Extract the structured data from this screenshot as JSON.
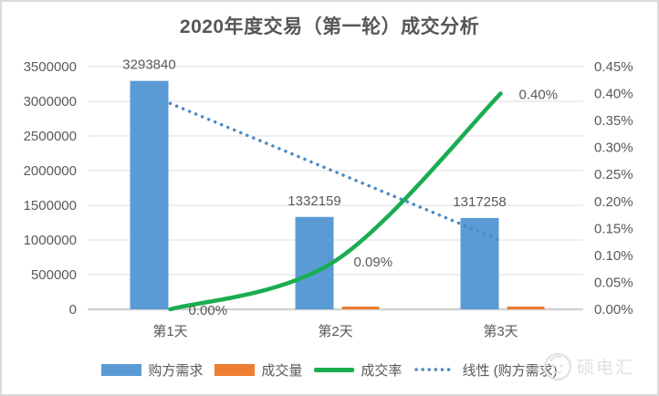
{
  "chart_data": {
    "type": "combo-bar-line",
    "title": "2020年度交易（第一轮）成交分析",
    "categories": [
      "第1天",
      "第2天",
      "第3天"
    ],
    "series": [
      {
        "name": "购方需求",
        "chart": "bar",
        "axis": "left",
        "color": "#5b9bd5",
        "values": [
          3293840,
          1332159,
          1317258
        ],
        "data_labels": [
          "3293840",
          "1332159",
          "1317258"
        ]
      },
      {
        "name": "成交量",
        "chart": "bar",
        "axis": "left",
        "color": "#ed7d31",
        "values": [
          0,
          1200,
          5270
        ]
      },
      {
        "name": "成交率",
        "chart": "smooth-line",
        "axis": "right",
        "color": "#1aad51",
        "values_pct": [
          0.0,
          0.09,
          0.4
        ],
        "data_labels": [
          "0.00%",
          "0.09%",
          "0.40%"
        ]
      },
      {
        "name": "线性 (购方需求)",
        "chart": "dotted-trendline",
        "axis": "left",
        "color": "#4e86c8",
        "based_on": "购方需求"
      }
    ],
    "axes": {
      "left": {
        "min": 0,
        "max": 3500000,
        "ticks": [
          "0",
          "500000",
          "1000000",
          "1500000",
          "2000000",
          "2500000",
          "3000000",
          "3500000"
        ]
      },
      "right": {
        "min_pct": 0.0,
        "max_pct": 0.45,
        "ticks": [
          "0.00%",
          "0.05%",
          "0.10%",
          "0.15%",
          "0.20%",
          "0.25%",
          "0.30%",
          "0.35%",
          "0.40%",
          "0.45%"
        ]
      }
    },
    "grid": "horizontal",
    "legend_position": "bottom"
  },
  "watermark": {
    "logo": "shuo-dian-hui-logo",
    "text": "硕电汇"
  },
  "frame_color": "#dadada",
  "text_color": "#595959"
}
